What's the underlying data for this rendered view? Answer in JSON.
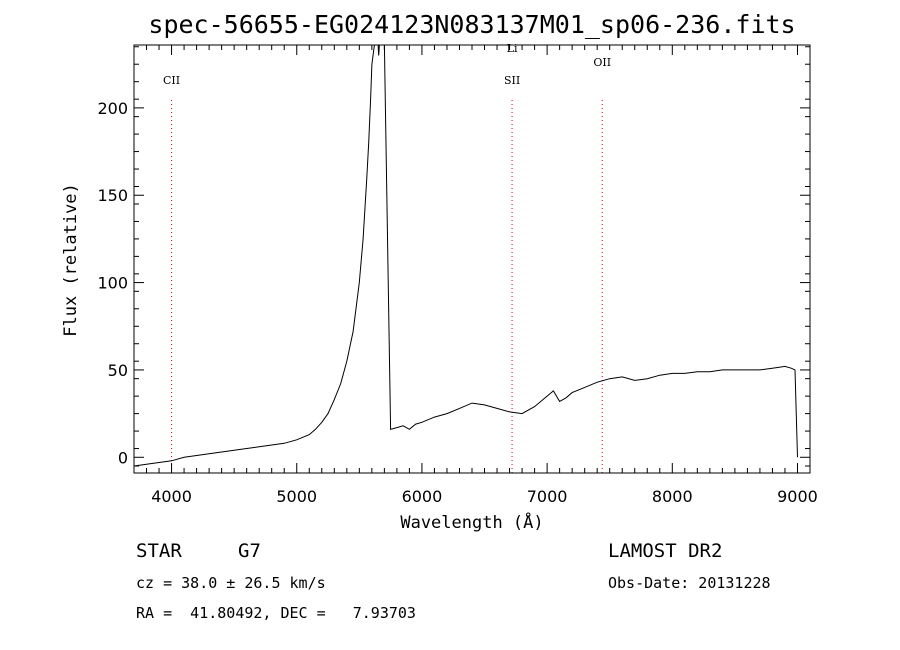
{
  "chart_data": {
    "type": "line",
    "title": "spec-56655-EG024123N083137M01_sp06-236.fits",
    "xlabel": "Wavelength (Å)",
    "ylabel": "Flux (relative)",
    "xlim": [
      3700,
      9100
    ],
    "ylim": [
      -9,
      236
    ],
    "x_ticks": [
      4000,
      5000,
      6000,
      7000,
      8000,
      9000
    ],
    "x_tick_labels": [
      "4000",
      "5000",
      "6000",
      "7000",
      "8000",
      "9000"
    ],
    "y_ticks": [
      0,
      50,
      100,
      150,
      200
    ],
    "y_tick_labels": [
      "0",
      "50",
      "100",
      "150",
      "200"
    ],
    "grid": false,
    "series": [
      {
        "color": "#000000",
        "x": [
          3700,
          3800,
          3900,
          4000,
          4100,
          4200,
          4300,
          4400,
          4500,
          4600,
          4700,
          4800,
          4900,
          5000,
          5100,
          5150,
          5200,
          5250,
          5300,
          5350,
          5400,
          5450,
          5500,
          5530,
          5560,
          5575,
          5590,
          5600,
          5620,
          5640,
          5650,
          5655,
          5660,
          5670,
          5680,
          5690,
          5700,
          5750,
          5800,
          5850,
          5900,
          5950,
          6000,
          6100,
          6200,
          6300,
          6400,
          6500,
          6600,
          6700,
          6800,
          6900,
          7000,
          7050,
          7100,
          7150,
          7200,
          7300,
          7400,
          7500,
          7600,
          7700,
          7800,
          7900,
          8000,
          8100,
          8200,
          8300,
          8400,
          8500,
          8600,
          8700,
          8800,
          8900,
          8950,
          8980,
          9000
        ],
        "y": [
          -5,
          -4,
          -3,
          -2,
          0,
          1,
          2,
          3,
          4,
          5,
          6,
          7,
          8,
          10,
          13,
          16,
          20,
          25,
          33,
          42,
          55,
          72,
          100,
          125,
          160,
          180,
          205,
          225,
          236,
          236,
          236,
          230,
          236,
          236,
          236,
          236,
          236,
          16,
          17,
          18,
          16,
          19,
          20,
          23,
          25,
          28,
          31,
          30,
          28,
          26,
          25,
          29,
          35,
          38,
          32,
          34,
          37,
          40,
          43,
          45,
          46,
          44,
          45,
          47,
          48,
          48,
          49,
          49,
          50,
          50,
          50,
          50,
          51,
          52,
          51,
          50,
          0
        ]
      }
    ],
    "annotations": [
      {
        "label": "CII",
        "x": 4000
      },
      {
        "label": "SII",
        "x": 6720
      },
      {
        "label": "Li",
        "x": 6720
      },
      {
        "label": "OII",
        "x": 7440
      }
    ]
  },
  "info": {
    "class_label": "STAR",
    "subclass_label": "G7",
    "cz_line": "cz = 38.0 ± 26.5 km/s",
    "radec_line": "RA =  41.80492, DEC =   7.93703",
    "survey_label": "LAMOST DR2",
    "obsdate_line": "Obs-Date: 20131228"
  }
}
